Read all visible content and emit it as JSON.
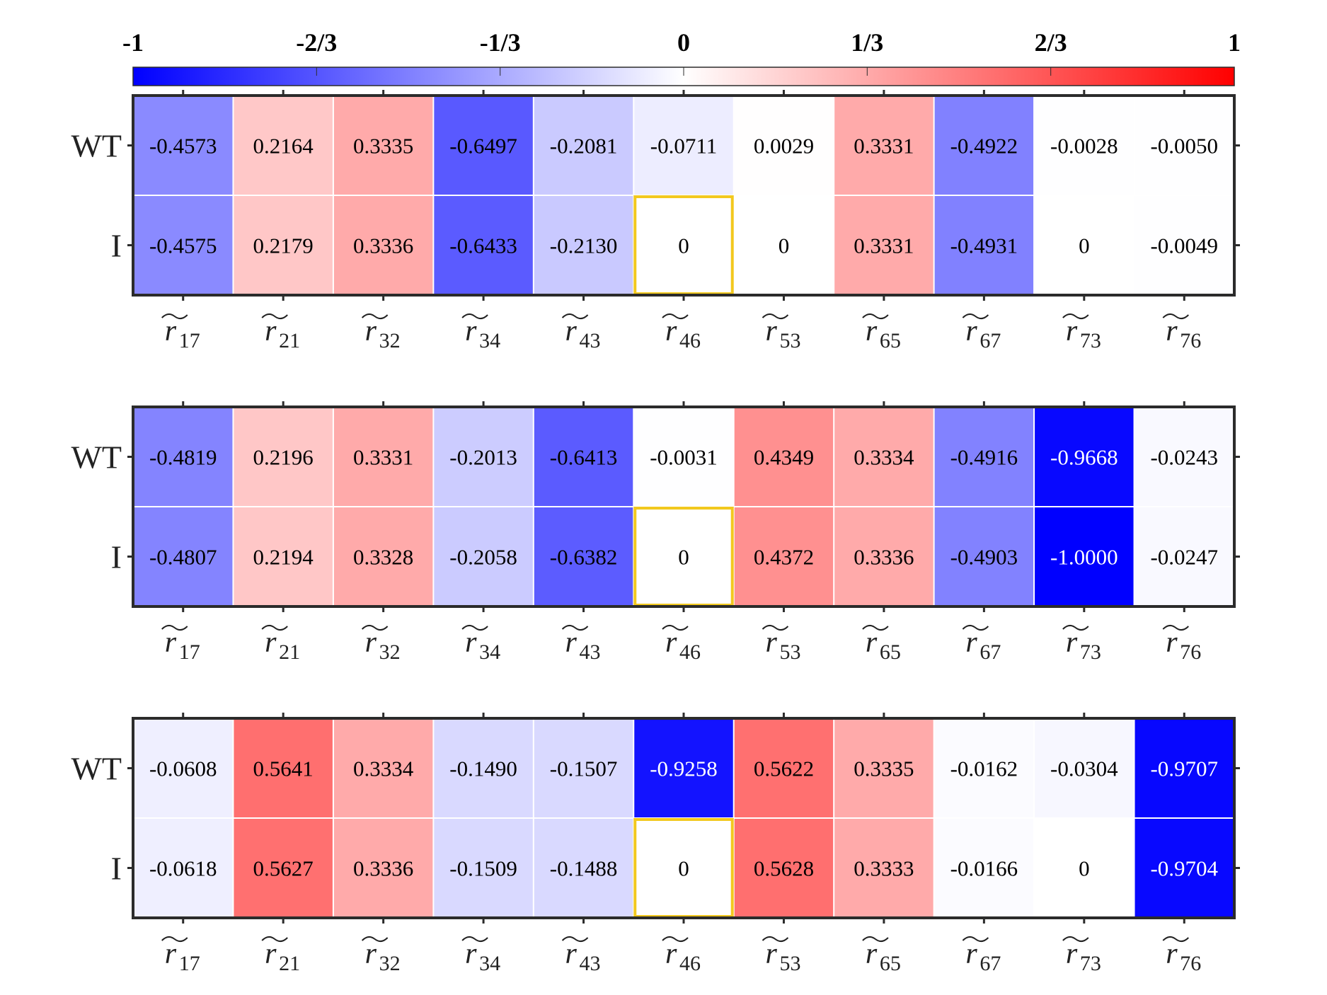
{
  "colorbar": {
    "ticks": [
      "-1",
      "-2/3",
      "-1/3",
      "0",
      "1/3",
      "2/3",
      "1"
    ],
    "tick_values": [
      -1,
      -0.6667,
      -0.3333,
      0,
      0.3333,
      0.6667,
      1
    ],
    "colors": {
      "negative": "#0000ff",
      "zero": "#ffffff",
      "positive": "#ff0000"
    }
  },
  "highlight_color": "#f2c81e",
  "frame_color": "#2b2b2b",
  "chart_data": [
    {
      "type": "heatmap",
      "rows": [
        "WT",
        "I"
      ],
      "columns": [
        "r̃17",
        "r̃21",
        "r̃32",
        "r̃34",
        "r̃43",
        "r̃46",
        "r̃53",
        "r̃65",
        "r̃67",
        "r̃73",
        "r̃76"
      ],
      "column_subscripts": [
        "17",
        "21",
        "32",
        "34",
        "43",
        "46",
        "53",
        "65",
        "67",
        "73",
        "76"
      ],
      "values": [
        [
          -0.4573,
          0.2164,
          0.3335,
          -0.6497,
          -0.2081,
          -0.0711,
          0.0029,
          0.3331,
          -0.4922,
          -0.0028,
          -0.005
        ],
        [
          -0.4575,
          0.2179,
          0.3336,
          -0.6433,
          -0.213,
          0,
          0,
          0.3331,
          -0.4931,
          0,
          -0.0049
        ]
      ],
      "labels": [
        [
          "-0.4573",
          "0.2164",
          "0.3335",
          "-0.6497",
          "-0.2081",
          "-0.0711",
          "0.0029",
          "0.3331",
          "-0.4922",
          "-0.0028",
          "-0.0050"
        ],
        [
          "-0.4575",
          "0.2179",
          "0.3336",
          "-0.6433",
          "-0.2130",
          "0",
          "0",
          "0.3331",
          "-0.4931",
          "0",
          "-0.0049"
        ]
      ],
      "highlighted_cells": [
        [
          1,
          5
        ]
      ],
      "clim": [
        -1,
        1
      ]
    },
    {
      "type": "heatmap",
      "rows": [
        "WT",
        "I"
      ],
      "columns": [
        "r̃17",
        "r̃21",
        "r̃32",
        "r̃34",
        "r̃43",
        "r̃46",
        "r̃53",
        "r̃65",
        "r̃67",
        "r̃73",
        "r̃76"
      ],
      "column_subscripts": [
        "17",
        "21",
        "32",
        "34",
        "43",
        "46",
        "53",
        "65",
        "67",
        "73",
        "76"
      ],
      "values": [
        [
          -0.4819,
          0.2196,
          0.3331,
          -0.2013,
          -0.6413,
          -0.0031,
          0.4349,
          0.3334,
          -0.4916,
          -0.9668,
          -0.0243
        ],
        [
          -0.4807,
          0.2194,
          0.3328,
          -0.2058,
          -0.6382,
          0,
          0.4372,
          0.3336,
          -0.4903,
          -1.0,
          -0.0247
        ]
      ],
      "labels": [
        [
          "-0.4819",
          "0.2196",
          "0.3331",
          "-0.2013",
          "-0.6413",
          "-0.0031",
          "0.4349",
          "0.3334",
          "-0.4916",
          "-0.9668",
          "-0.0243"
        ],
        [
          "-0.4807",
          "0.2194",
          "0.3328",
          "-0.2058",
          "-0.6382",
          "0",
          "0.4372",
          "0.3336",
          "-0.4903",
          "-1.0000",
          "-0.0247"
        ]
      ],
      "highlighted_cells": [
        [
          1,
          5
        ]
      ],
      "clim": [
        -1,
        1
      ]
    },
    {
      "type": "heatmap",
      "rows": [
        "WT",
        "I"
      ],
      "columns": [
        "r̃17",
        "r̃21",
        "r̃32",
        "r̃34",
        "r̃43",
        "r̃46",
        "r̃53",
        "r̃65",
        "r̃67",
        "r̃73",
        "r̃76"
      ],
      "column_subscripts": [
        "17",
        "21",
        "32",
        "34",
        "43",
        "46",
        "53",
        "65",
        "67",
        "73",
        "76"
      ],
      "values": [
        [
          -0.0608,
          0.5641,
          0.3334,
          -0.149,
          -0.1507,
          -0.9258,
          0.5622,
          0.3335,
          -0.0162,
          -0.0304,
          -0.9707
        ],
        [
          -0.0618,
          0.5627,
          0.3336,
          -0.1509,
          -0.1488,
          0,
          0.5628,
          0.3333,
          -0.0166,
          0,
          -0.9704
        ]
      ],
      "labels": [
        [
          "-0.0608",
          "0.5641",
          "0.3334",
          "-0.1490",
          "-0.1507",
          "-0.9258",
          "0.5622",
          "0.3335",
          "-0.0162",
          "-0.0304",
          "-0.9707"
        ],
        [
          "-0.0618",
          "0.5627",
          "0.3336",
          "-0.1509",
          "-0.1488",
          "0",
          "0.5628",
          "0.3333",
          "-0.0166",
          "0",
          "-0.9704"
        ]
      ],
      "highlighted_cells": [
        [
          1,
          5
        ]
      ],
      "clim": [
        -1,
        1
      ]
    }
  ]
}
